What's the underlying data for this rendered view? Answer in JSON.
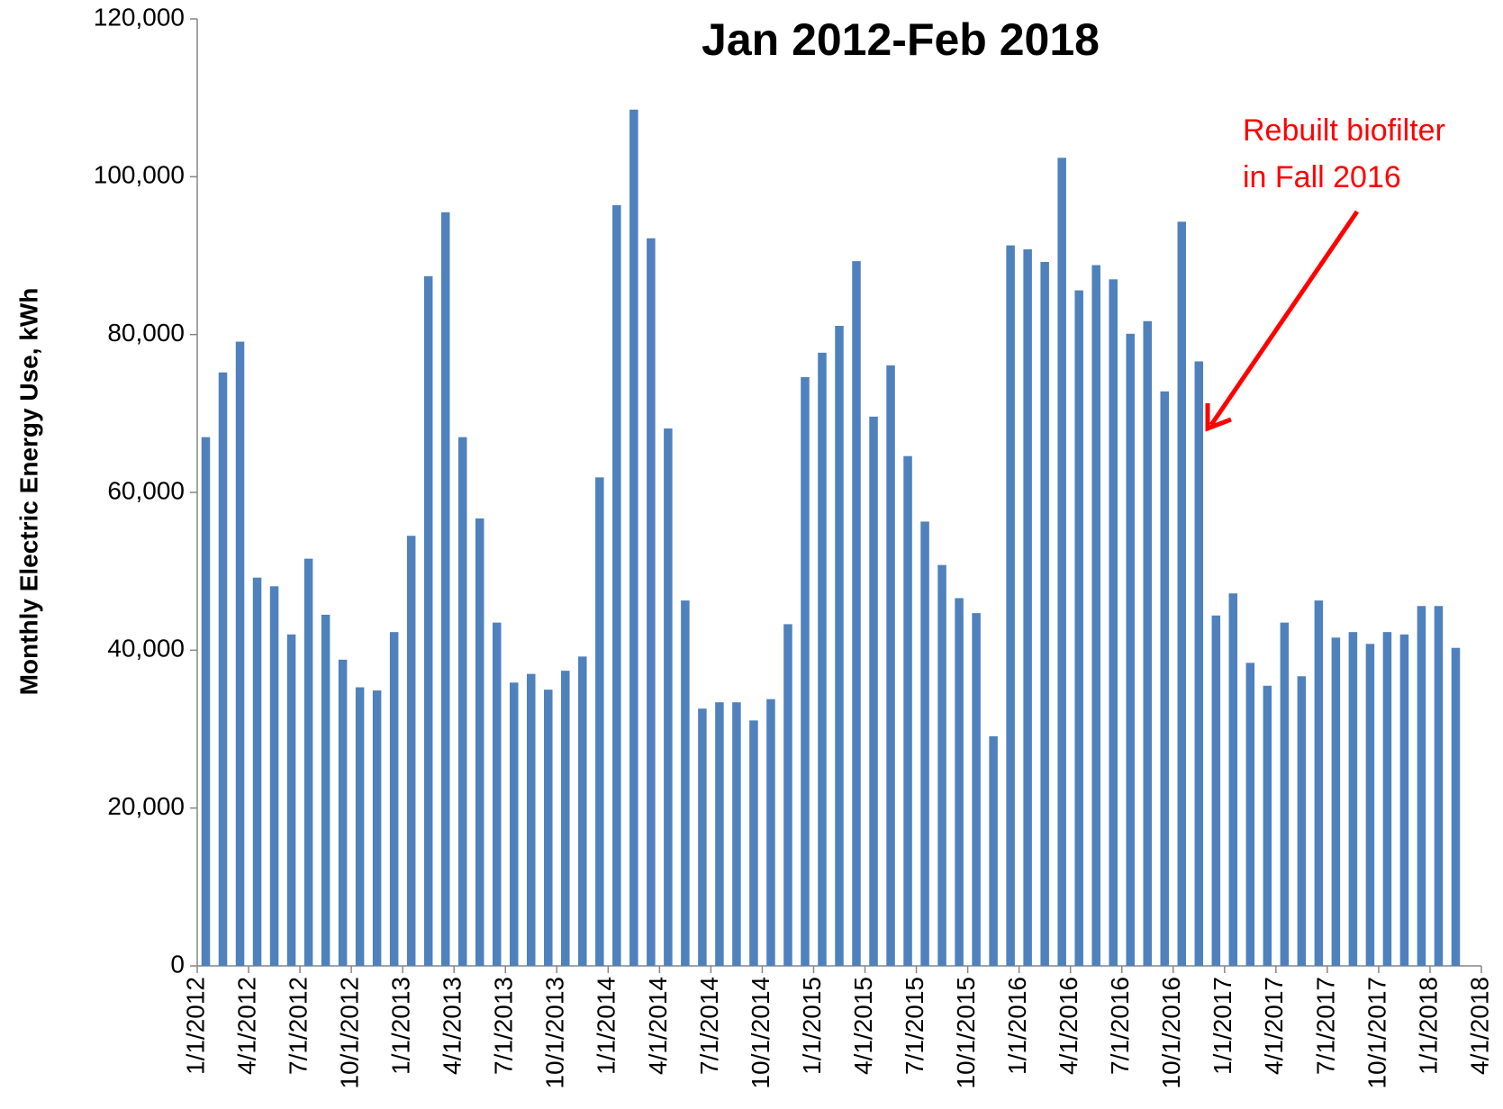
{
  "chart_data": {
    "type": "bar",
    "title": "Jan 2012-Feb 2018",
    "y_label": "Monthly Electric Energy Use, kWh",
    "annotation": [
      "Rebuilt biofilter",
      "in Fall 2016"
    ],
    "color": "#4f81bd",
    "x": [
      "1/1/2012",
      "2/1/2012",
      "3/1/2012",
      "4/1/2012",
      "5/1/2012",
      "6/1/2012",
      "7/1/2012",
      "8/1/2012",
      "9/1/2012",
      "10/1/2012",
      "11/1/2012",
      "12/1/2012",
      "1/1/2013",
      "2/1/2013",
      "3/1/2013",
      "4/1/2013",
      "5/1/2013",
      "6/1/2013",
      "7/1/2013",
      "8/1/2013",
      "9/1/2013",
      "10/1/2013",
      "11/1/2013",
      "12/1/2013",
      "1/1/2014",
      "2/1/2014",
      "3/1/2014",
      "4/1/2014",
      "5/1/2014",
      "6/1/2014",
      "7/1/2014",
      "8/1/2014",
      "9/1/2014",
      "10/1/2014",
      "11/1/2014",
      "12/1/2014",
      "1/1/2015",
      "2/1/2015",
      "3/1/2015",
      "4/1/2015",
      "5/1/2015",
      "6/1/2015",
      "7/1/2015",
      "8/1/2015",
      "9/1/2015",
      "10/1/2015",
      "11/1/2015",
      "12/1/2015",
      "1/1/2016",
      "2/1/2016",
      "3/1/2016",
      "4/1/2016",
      "5/1/2016",
      "6/1/2016",
      "7/1/2016",
      "8/1/2016",
      "9/1/2016",
      "10/1/2016",
      "11/1/2016",
      "12/1/2016",
      "1/1/2017",
      "2/1/2017",
      "3/1/2017",
      "4/1/2017",
      "5/1/2017",
      "6/1/2017",
      "7/1/2017",
      "8/1/2017",
      "9/1/2017",
      "10/1/2017",
      "11/1/2017",
      "12/1/2017",
      "1/1/2018",
      "2/1/2018"
    ],
    "values": [
      67000,
      75200,
      79100,
      49200,
      48100,
      42000,
      51600,
      44500,
      38800,
      35300,
      34900,
      42300,
      54500,
      87400,
      95500,
      67000,
      56700,
      43500,
      35900,
      37000,
      35000,
      37400,
      39200,
      61900,
      96400,
      108500,
      92200,
      68100,
      46300,
      32600,
      33400,
      33400,
      31100,
      33800,
      43300,
      74600,
      77700,
      81100,
      89300,
      69600,
      76100,
      64600,
      56300,
      50800,
      46600,
      44700,
      29100,
      91300,
      90800,
      89200,
      102400,
      85600,
      88800,
      87000,
      80100,
      81700,
      72800,
      94300,
      76600,
      44400,
      47200,
      38400,
      35500,
      43500,
      36700,
      46300,
      41600,
      42300,
      40800,
      42300,
      42000,
      45600,
      45600,
      40300
    ],
    "xlim": [
      "1/1/2012",
      "4/1/2018"
    ],
    "xticks": [
      "1/1/2012",
      "4/1/2012",
      "7/1/2012",
      "10/1/2012",
      "1/1/2013",
      "4/1/2013",
      "7/1/2013",
      "10/1/2013",
      "1/1/2014",
      "4/1/2014",
      "7/1/2014",
      "10/1/2014",
      "1/1/2015",
      "4/1/2015",
      "7/1/2015",
      "10/1/2015",
      "1/1/2016",
      "4/1/2016",
      "7/1/2016",
      "10/1/2016",
      "1/1/2017",
      "4/1/2017",
      "7/1/2017",
      "10/1/2017",
      "1/1/2018",
      "4/1/2018"
    ],
    "ylim": [
      0,
      120000
    ],
    "yticks": [
      0,
      {
        "value": 20000,
        "label": "20,000"
      },
      {
        "value": 40000,
        "label": "40,000"
      },
      {
        "value": 60000,
        "label": "60,000"
      },
      {
        "value": 80000,
        "label": "80,000"
      },
      {
        "value": 100000,
        "label": "100,000"
      },
      {
        "value": 120000,
        "label": "120,000"
      }
    ],
    "grid": false
  }
}
